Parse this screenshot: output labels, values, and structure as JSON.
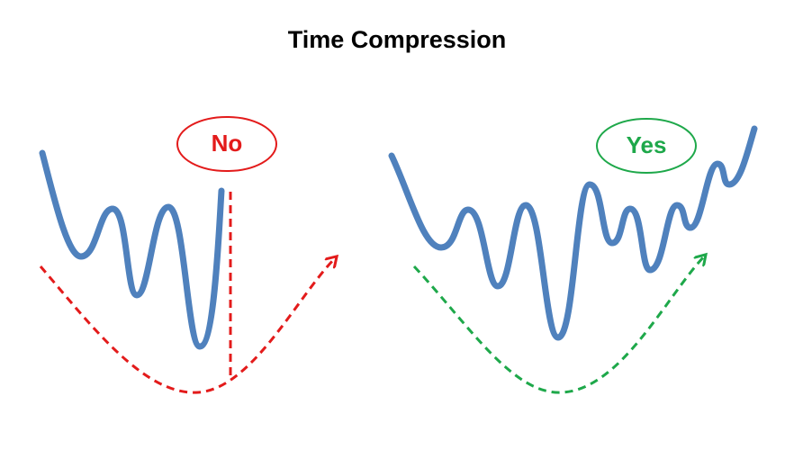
{
  "header": {
    "title": "Time Compression"
  },
  "panels": [
    {
      "label": "No"
    },
    {
      "label": "Yes"
    }
  ]
}
